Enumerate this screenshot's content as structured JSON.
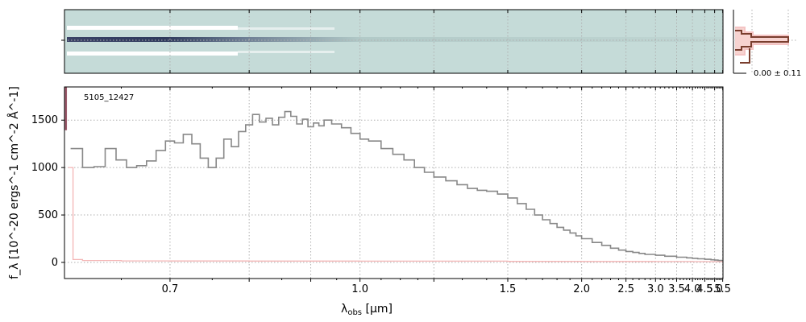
{
  "chart_data": [
    {
      "type": "heatmap",
      "panel": "2d-spectrum",
      "xlim": [
        0.6,
        5.5
      ],
      "grid": true,
      "colors": {
        "background": "#c5dbd8",
        "trace": "#2e3a5c",
        "halo": "#ffffff"
      }
    },
    {
      "type": "line",
      "panel": "cross-profile",
      "annotation": "0.00 ± 0.11",
      "colors": {
        "model": "#f4c4c4",
        "data": "#7a3e2e"
      }
    },
    {
      "type": "line",
      "panel": "1d-spectrum",
      "annotation": "5105_12427",
      "xlabel_main": "λ",
      "xlabel_sub": "obs",
      "xlabel_unit": " [μm]",
      "ylabel": "f_λ [10^-20 ergs^-1 cm^-2 Å^-1]",
      "x_scale": "reciprocal",
      "xlim": [
        0.6,
        5.52
      ],
      "ylim": [
        -170,
        1850
      ],
      "grid": true,
      "x_ticks": [
        0.7,
        0.8,
        0.9,
        1.0,
        1.2,
        1.5,
        2.0,
        2.5,
        3.0,
        3.5,
        4.0,
        4.5,
        5.0,
        5.5
      ],
      "x_tick_labels": [
        {
          "v": 0.7,
          "text": "0.7"
        },
        {
          "v": 1.0,
          "text": "1.0"
        },
        {
          "v": 1.5,
          "text": "1.5"
        },
        {
          "v": 2.0,
          "text": "2.0"
        },
        {
          "v": 2.5,
          "text": "2.5"
        },
        {
          "v": 3.0,
          "text": "3.0"
        },
        {
          "v": 3.5,
          "text": "3.5"
        },
        {
          "v": 4.0,
          "text": "4.0"
        },
        {
          "v": 4.5,
          "text": "4.5"
        },
        {
          "v": 5.0,
          "text": "5.0"
        },
        {
          "v": 5.5,
          "text": "5.5"
        }
      ],
      "y_ticks": [
        0,
        500,
        1000,
        1500
      ],
      "y_tick_labels": [
        "0",
        "500",
        "1000",
        "1500"
      ],
      "series": [
        {
          "role": "spectrum",
          "color": "#888888",
          "x": [
            0.605,
            0.615,
            0.625,
            0.635,
            0.645,
            0.655,
            0.665,
            0.675,
            0.685,
            0.695,
            0.705,
            0.715,
            0.725,
            0.735,
            0.745,
            0.755,
            0.765,
            0.775,
            0.785,
            0.795,
            0.805,
            0.815,
            0.825,
            0.835,
            0.845,
            0.855,
            0.865,
            0.875,
            0.885,
            0.895,
            0.905,
            0.915,
            0.925,
            0.94,
            0.96,
            0.98,
            1.0,
            1.02,
            1.05,
            1.08,
            1.11,
            1.14,
            1.17,
            1.2,
            1.24,
            1.28,
            1.32,
            1.36,
            1.4,
            1.45,
            1.5,
            1.55,
            1.6,
            1.65,
            1.7,
            1.75,
            1.8,
            1.85,
            1.9,
            1.95,
            2.0,
            2.1,
            2.2,
            2.3,
            2.4,
            2.5,
            2.6,
            2.7,
            2.8,
            3.0,
            3.2,
            3.5,
            3.8,
            4.0,
            4.2,
            4.5,
            4.8,
            5.0,
            5.2,
            5.5
          ],
          "y": [
            1200,
            1000,
            1010,
            1200,
            1080,
            1000,
            1020,
            1070,
            1180,
            1280,
            1260,
            1350,
            1250,
            1100,
            1000,
            1100,
            1300,
            1220,
            1380,
            1450,
            1560,
            1480,
            1520,
            1450,
            1530,
            1590,
            1540,
            1460,
            1510,
            1430,
            1470,
            1440,
            1500,
            1460,
            1420,
            1360,
            1300,
            1280,
            1200,
            1140,
            1080,
            1000,
            950,
            900,
            860,
            820,
            780,
            760,
            750,
            720,
            680,
            620,
            560,
            500,
            450,
            410,
            370,
            340,
            310,
            280,
            250,
            210,
            180,
            150,
            130,
            115,
            105,
            95,
            85,
            75,
            65,
            55,
            48,
            43,
            38,
            33,
            28,
            24,
            20,
            16
          ]
        },
        {
          "role": "error",
          "color": "#f4b6b6",
          "x": [
            0.603,
            0.607,
            0.615,
            0.65,
            0.7,
            0.8,
            1.0,
            1.5,
            2.0,
            3.0,
            4.0,
            5.0,
            5.5
          ],
          "y": [
            1000,
            30,
            20,
            16,
            15,
            14,
            13,
            11,
            10,
            9,
            8,
            8,
            8
          ]
        },
        {
          "role": "spike",
          "color": "#9b5b6b",
          "x": [
            0.6005,
            0.6005,
            0.6015,
            0.6015
          ],
          "y": [
            1850,
            1400,
            1400,
            1850
          ]
        }
      ]
    }
  ]
}
